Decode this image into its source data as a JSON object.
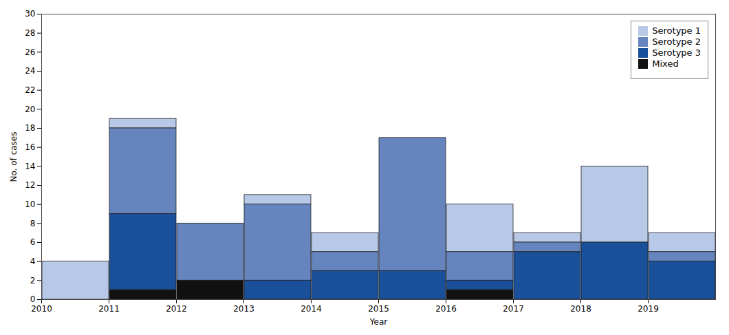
{
  "chart_data": {
    "type": "bar",
    "stacked": true,
    "x": [
      2010,
      2011,
      2012,
      2013,
      2014,
      2015,
      2016,
      2017,
      2018,
      2019
    ],
    "series": [
      {
        "name": "Serotype 1",
        "color": "#b8c9e8",
        "values": [
          4,
          1,
          0,
          1,
          2,
          0,
          5,
          1,
          8,
          2
        ]
      },
      {
        "name": "Serotype 2",
        "color": "#6685be",
        "values": [
          0,
          9,
          6,
          8,
          2,
          14,
          3,
          1,
          0,
          1
        ]
      },
      {
        "name": "Serotype 3",
        "color": "#1a4f99",
        "values": [
          0,
          8,
          0,
          2,
          3,
          3,
          1,
          5,
          6,
          4
        ]
      },
      {
        "name": "Mixed",
        "color": "#111111",
        "values": [
          0,
          1,
          2,
          0,
          0,
          0,
          1,
          0,
          0,
          0
        ]
      }
    ],
    "xlim": [
      2010,
      2020
    ],
    "xticks": [
      2010,
      2011,
      2012,
      2013,
      2014,
      2015,
      2016,
      2017,
      2018,
      2019
    ],
    "ylim": [
      0,
      30
    ],
    "yticks": [
      0,
      2,
      4,
      6,
      8,
      10,
      12,
      14,
      16,
      18,
      20,
      22,
      24,
      26,
      28,
      30
    ],
    "xlabel": "Year",
    "ylabel": "No. of cases",
    "legend": "upper right",
    "grid": false
  }
}
